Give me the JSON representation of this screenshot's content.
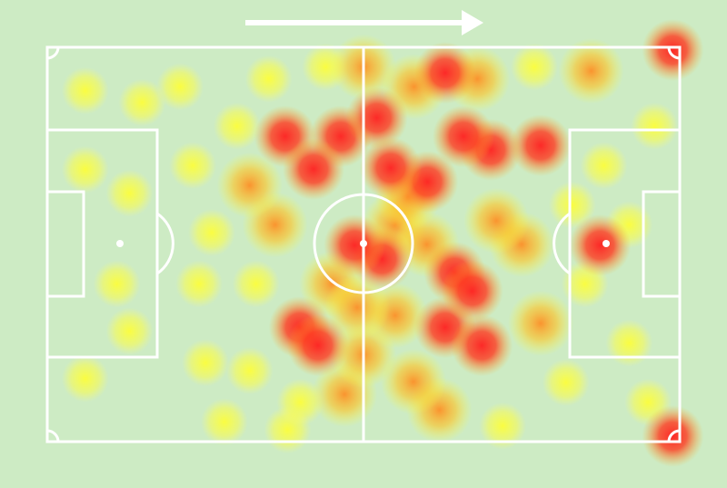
{
  "colors": {
    "background": "#cdebc4",
    "lines": "#ffffff",
    "low": "#ffff33",
    "mid": "#ff9a1f",
    "high": "#ff2a1f"
  },
  "direction_arrow": "right",
  "chart_data": {
    "type": "heatmap",
    "title": "",
    "xlabel": "",
    "ylabel": "",
    "xlim": [
      0,
      100
    ],
    "ylim": [
      0,
      100
    ],
    "grid": false,
    "points_format": [
      "x",
      "y",
      "intensity"
    ],
    "points": [
      [
        42.1,
        30.9,
        1.0
      ],
      [
        37.6,
        22.6,
        0.9
      ],
      [
        46.4,
        22.6,
        0.85
      ],
      [
        48.6,
        50.2,
        1.0
      ],
      [
        52.9,
        53.7,
        0.95
      ],
      [
        39.9,
        71.0,
        0.95
      ],
      [
        42.8,
        75.6,
        1.0
      ],
      [
        62.9,
        6.5,
        0.9
      ],
      [
        54.3,
        30.6,
        1.0
      ],
      [
        60.1,
        34.1,
        0.95
      ],
      [
        65.8,
        22.6,
        1.0
      ],
      [
        70.1,
        26.0,
        0.95
      ],
      [
        78.0,
        24.9,
        0.9
      ],
      [
        64.4,
        57.1,
        0.95
      ],
      [
        67.2,
        61.8,
        0.95
      ],
      [
        62.9,
        71.0,
        0.9
      ],
      [
        68.7,
        75.6,
        1.0
      ],
      [
        52.1,
        17.9,
        0.9
      ],
      [
        87.4,
        50.2,
        0.9
      ],
      [
        98.9,
        0.7,
        1.0
      ],
      [
        98.9,
        98.6,
        1.0
      ],
      [
        57.9,
        84.8,
        0.8
      ],
      [
        58.0,
        10.0,
        0.8
      ],
      [
        55.0,
        45.0,
        0.7
      ],
      [
        60.0,
        50.0,
        0.75
      ],
      [
        71.0,
        44.0,
        0.7
      ],
      [
        75.0,
        50.0,
        0.6
      ],
      [
        45.0,
        60.0,
        0.6
      ],
      [
        36.0,
        45.0,
        0.55
      ],
      [
        50.0,
        78.0,
        0.7
      ],
      [
        55.0,
        68.0,
        0.7
      ],
      [
        47.0,
        88.0,
        0.6
      ],
      [
        62.0,
        92.0,
        0.55
      ],
      [
        44.0,
        5.0,
        0.5
      ],
      [
        50.0,
        5.0,
        0.6
      ],
      [
        68.0,
        8.0,
        0.55
      ],
      [
        77.0,
        5.0,
        0.5
      ],
      [
        86.0,
        6.0,
        0.6
      ],
      [
        35.0,
        8.0,
        0.45
      ],
      [
        30.0,
        20.0,
        0.5
      ],
      [
        32.0,
        35.0,
        0.55
      ],
      [
        33.0,
        60.0,
        0.5
      ],
      [
        32.0,
        82.0,
        0.45
      ],
      [
        40.0,
        90.0,
        0.5
      ],
      [
        78.0,
        70.0,
        0.55
      ],
      [
        82.0,
        85.0,
        0.5
      ],
      [
        88.0,
        30.0,
        0.45
      ],
      [
        92.0,
        75.0,
        0.45
      ],
      [
        96.0,
        20.0,
        0.4
      ],
      [
        95.0,
        90.0,
        0.45
      ],
      [
        23.0,
        30.0,
        0.4
      ],
      [
        24.0,
        60.0,
        0.4
      ],
      [
        25.0,
        80.0,
        0.35
      ],
      [
        6.0,
        11.0,
        0.3
      ],
      [
        15.0,
        14.0,
        0.3
      ],
      [
        6.0,
        31.0,
        0.3
      ],
      [
        13.0,
        37.0,
        0.3
      ],
      [
        11.0,
        60.0,
        0.3
      ],
      [
        13.0,
        72.0,
        0.3
      ],
      [
        6.0,
        84.0,
        0.3
      ],
      [
        21.0,
        10.0,
        0.3
      ],
      [
        26.0,
        47.0,
        0.35
      ],
      [
        28.0,
        95.0,
        0.35
      ],
      [
        38.0,
        97.0,
        0.4
      ],
      [
        72.0,
        96.0,
        0.4
      ],
      [
        83.0,
        40.0,
        0.45
      ],
      [
        85.0,
        60.0,
        0.45
      ],
      [
        92.0,
        45.0,
        0.35
      ],
      [
        57.0,
        38.0,
        0.8
      ],
      [
        49.0,
        66.0,
        0.7
      ]
    ]
  }
}
